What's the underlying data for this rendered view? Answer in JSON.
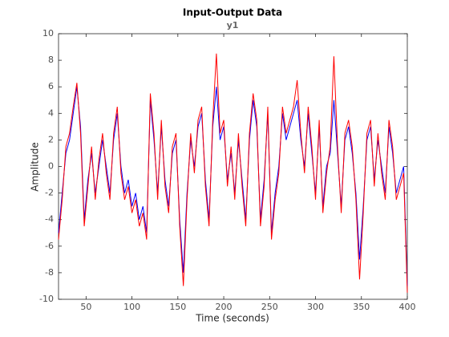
{
  "chart_data": {
    "type": "line",
    "title": "Input-Output Data",
    "subtitle": "y1",
    "xlabel": "Time (seconds)",
    "ylabel": "Amplitude",
    "xlim": [
      20,
      400
    ],
    "ylim": [
      -10,
      10
    ],
    "xticks": [
      50,
      100,
      150,
      200,
      250,
      300,
      350,
      400
    ],
    "yticks": [
      -10,
      -8,
      -6,
      -4,
      -2,
      0,
      2,
      4,
      6,
      8,
      10
    ],
    "grid": false,
    "x": [
      20,
      24,
      28,
      32,
      36,
      40,
      44,
      48,
      52,
      56,
      60,
      64,
      68,
      72,
      76,
      80,
      84,
      88,
      92,
      96,
      100,
      104,
      108,
      112,
      116,
      120,
      124,
      128,
      132,
      136,
      140,
      144,
      148,
      152,
      156,
      160,
      164,
      168,
      172,
      176,
      180,
      184,
      188,
      192,
      196,
      200,
      204,
      208,
      212,
      216,
      220,
      224,
      228,
      232,
      236,
      240,
      244,
      248,
      252,
      256,
      260,
      264,
      268,
      272,
      276,
      280,
      284,
      288,
      292,
      296,
      300,
      304,
      308,
      312,
      316,
      320,
      324,
      328,
      332,
      336,
      340,
      344,
      348,
      352,
      356,
      360,
      364,
      368,
      372,
      376,
      380,
      384,
      388,
      392,
      396,
      400
    ],
    "series": [
      {
        "color": "#0000ff",
        "values": [
          -5,
          -2,
          1,
          2,
          4,
          6,
          3,
          -4,
          -1,
          1,
          -2,
          0,
          2,
          0,
          -2,
          2,
          4,
          0,
          -2,
          -1,
          -3,
          -2,
          -4,
          -3,
          -5,
          5,
          2,
          -2,
          3,
          -1,
          -3,
          1,
          2,
          -4,
          -8,
          -2,
          2,
          0,
          3,
          4,
          -1,
          -4,
          3,
          6,
          2,
          3,
          -1,
          1,
          -2,
          2,
          -1,
          -4,
          2,
          5,
          3,
          -4,
          -1,
          4,
          -5,
          -2,
          0,
          4,
          2,
          3,
          4,
          5,
          2,
          0,
          4,
          1,
          -2,
          3,
          -3,
          0,
          1,
          5,
          1,
          -3,
          2,
          3,
          1,
          -2,
          -7,
          -3,
          2,
          3,
          -1,
          2,
          0,
          -2,
          3,
          1,
          -2,
          -1,
          0,
          -9
        ]
      },
      {
        "color": "#ff0000",
        "values": [
          -5.5,
          -2.5,
          1.5,
          2.5,
          4.5,
          6.3,
          2.5,
          -4.5,
          -1.5,
          1.5,
          -2.5,
          0.5,
          2.5,
          -0.5,
          -2.5,
          2.5,
          4.5,
          -0.5,
          -2.5,
          -1.5,
          -3.5,
          -2.5,
          -4.5,
          -3.5,
          -5.5,
          5.5,
          2.5,
          -2.5,
          3.5,
          -1.5,
          -3.5,
          1.5,
          2.5,
          -4.5,
          -9,
          -2.5,
          2.5,
          -0.5,
          3.5,
          4.5,
          -1.5,
          -4.5,
          3.5,
          8.5,
          2.5,
          3.5,
          -1.5,
          1.5,
          -2.5,
          2.5,
          -1.5,
          -4.5,
          2.5,
          5.5,
          3.5,
          -4.5,
          -1.5,
          4.5,
          -5.5,
          -2.5,
          -0.5,
          4.5,
          2.5,
          3.5,
          4.5,
          6.5,
          2.5,
          -0.5,
          4.5,
          1.5,
          -2.5,
          3.5,
          -3.5,
          -0.5,
          1.5,
          8.3,
          1.5,
          -3.5,
          2.5,
          3.5,
          1.5,
          -2.5,
          -8.5,
          -3.5,
          2.5,
          3.5,
          -1.5,
          2.5,
          -0.5,
          -2.5,
          3.5,
          1.5,
          -2.5,
          -1.5,
          -0.5,
          -9.5
        ]
      }
    ]
  }
}
